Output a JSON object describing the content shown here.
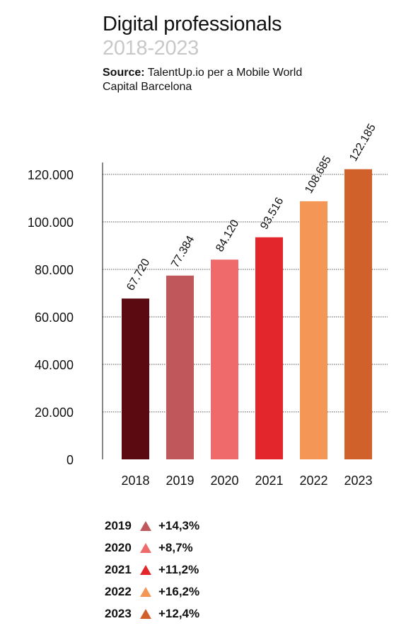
{
  "title": "Digital professionals",
  "subtitle": "2018-2023",
  "source": {
    "label": "Source:",
    "text": "TalentUp.io per a Mobile World Capital Barcelona"
  },
  "chart_data": {
    "type": "bar",
    "categories": [
      "2018",
      "2019",
      "2020",
      "2021",
      "2022",
      "2023"
    ],
    "values": [
      67720,
      77384,
      84120,
      93516,
      108685,
      122185
    ],
    "value_labels": [
      "67.720",
      "77.384",
      "84.120",
      "93.516",
      "108.685",
      "122.185"
    ],
    "colors": [
      "#5c0a12",
      "#c0575a",
      "#ef6a6b",
      "#e2262b",
      "#f49656",
      "#d0612b"
    ],
    "ylim": [
      0,
      125000
    ],
    "yticks": [
      0,
      20000,
      40000,
      60000,
      80000,
      100000,
      120000
    ],
    "ytick_labels": [
      "0",
      "20.000",
      "40.000",
      "60.000",
      "80.000",
      "100.000",
      "120.000"
    ],
    "grid": true,
    "xlabel": "",
    "ylabel": ""
  },
  "growth": [
    {
      "year": "2019",
      "value": "+14,3%",
      "color": "#c0575a"
    },
    {
      "year": "2020",
      "value": "+8,7%",
      "color": "#ef6a6b"
    },
    {
      "year": "2021",
      "value": "+11,2%",
      "color": "#e2262b"
    },
    {
      "year": "2022",
      "value": "+16,2%",
      "color": "#f49656"
    },
    {
      "year": "2023",
      "value": "+12,4%",
      "color": "#d0612b"
    }
  ]
}
